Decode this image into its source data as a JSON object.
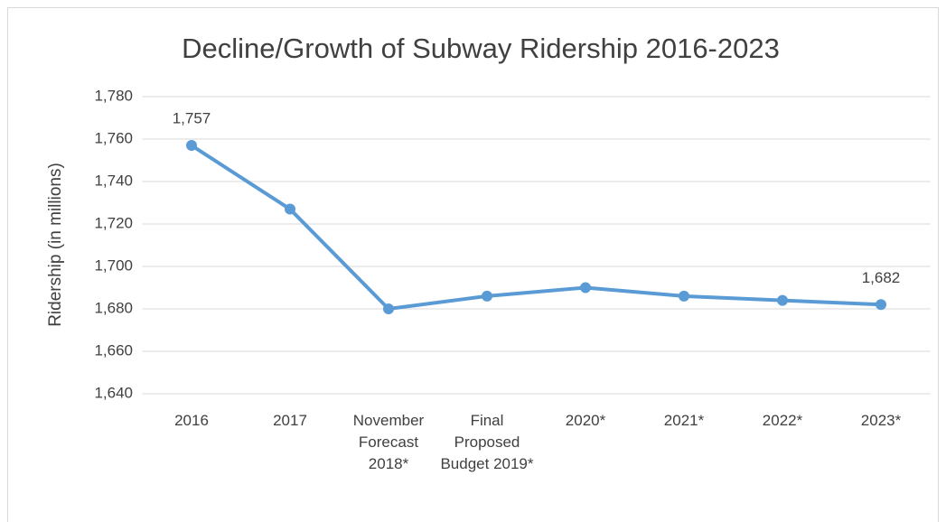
{
  "chart_data": {
    "type": "line",
    "title": "Decline/Growth of Subway Ridership 2016-2023",
    "y_label": "Ridership (in millions)",
    "categories": [
      "2016",
      "2017",
      "November Forecast 2018*",
      "Final Proposed Budget 2019*",
      "2020*",
      "2021*",
      "2022*",
      "2023*"
    ],
    "series": [
      {
        "name": "Ridership",
        "color": "#5b9bd5",
        "values": [
          1757,
          1727,
          1680,
          1686,
          1690,
          1686,
          1684,
          1682
        ],
        "value_labels": [
          "1,757",
          null,
          null,
          null,
          null,
          null,
          null,
          "1,682"
        ]
      }
    ],
    "ylim": [
      1640,
      1780
    ],
    "yticks": [
      {
        "value": 1640,
        "label": "1,640"
      },
      {
        "value": 1660,
        "label": "1,660"
      },
      {
        "value": 1680,
        "label": "1,680"
      },
      {
        "value": 1700,
        "label": "1,700"
      },
      {
        "value": 1720,
        "label": "1,720"
      },
      {
        "value": 1740,
        "label": "1,740"
      },
      {
        "value": 1760,
        "label": "1,760"
      },
      {
        "value": 1780,
        "label": "1,780"
      }
    ],
    "grid": true
  }
}
